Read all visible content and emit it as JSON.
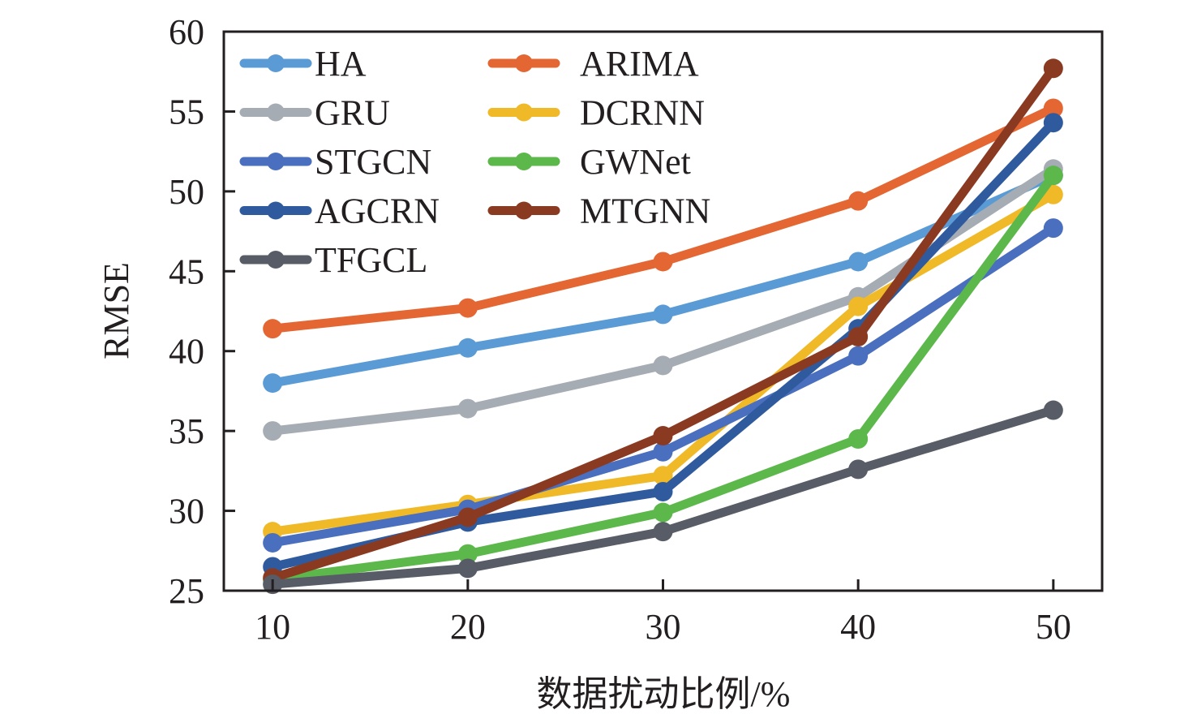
{
  "chart_data": {
    "type": "line",
    "title": "",
    "xlabel": "数据扰动比例/%",
    "ylabel": "RMSE",
    "x": [
      10,
      20,
      30,
      40,
      50
    ],
    "x_tick_labels": [
      "10",
      "20",
      "30",
      "40",
      "50"
    ],
    "xlim": [
      7.5,
      52.5
    ],
    "ylim": [
      25,
      60
    ],
    "y_ticks": [
      25,
      30,
      35,
      40,
      45,
      50,
      55,
      60
    ],
    "y_tick_labels": [
      "25",
      "30",
      "35",
      "40",
      "45",
      "50",
      "55",
      "60"
    ],
    "grid": false,
    "legend_position": "top-left",
    "legend_columns": 2,
    "series": [
      {
        "name": "HA",
        "color": "#5b9bd5",
        "values": [
          38.0,
          40.2,
          42.3,
          45.6,
          51.0
        ]
      },
      {
        "name": "ARIMA",
        "color": "#e46733",
        "values": [
          41.4,
          42.7,
          45.6,
          49.4,
          55.2
        ]
      },
      {
        "name": "GRU",
        "color": "#a5acb3",
        "values": [
          35.0,
          36.4,
          39.1,
          43.4,
          51.4
        ]
      },
      {
        "name": "DCRNN",
        "color": "#f0b928",
        "values": [
          28.7,
          30.4,
          32.2,
          42.8,
          49.8
        ]
      },
      {
        "name": "STGCN",
        "color": "#4a6fbe",
        "values": [
          28.0,
          30.1,
          33.7,
          39.7,
          47.7
        ]
      },
      {
        "name": "GWNet",
        "color": "#5cb84a",
        "values": [
          25.7,
          27.3,
          29.9,
          34.5,
          51.0
        ]
      },
      {
        "name": "AGCRN",
        "color": "#2f5b9e",
        "values": [
          26.5,
          29.3,
          31.2,
          41.4,
          54.3
        ]
      },
      {
        "name": "MTGNN",
        "color": "#8b3a22",
        "values": [
          25.8,
          29.6,
          34.7,
          40.9,
          57.7
        ]
      },
      {
        "name": "TFGCL",
        "color": "#575c66",
        "values": [
          25.4,
          26.4,
          28.7,
          32.6,
          36.3
        ]
      }
    ],
    "legend_order": [
      "HA",
      "ARIMA",
      "GRU",
      "DCRNN",
      "STGCN",
      "GWNet",
      "AGCRN",
      "MTGNN",
      "TFGCL"
    ],
    "draw_order": [
      "HA",
      "ARIMA",
      "GRU",
      "DCRNN",
      "STGCN",
      "AGCRN",
      "GWNet",
      "MTGNN",
      "TFGCL"
    ]
  }
}
